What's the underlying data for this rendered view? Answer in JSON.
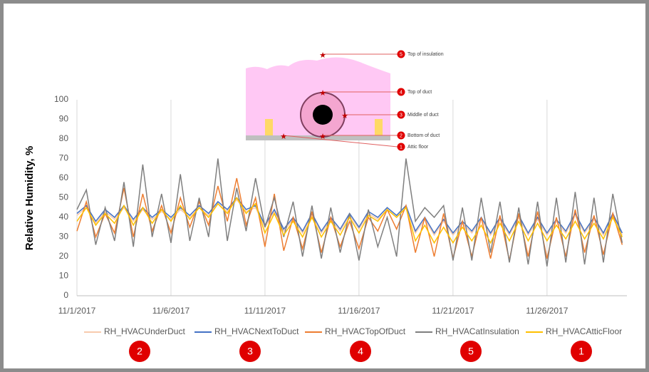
{
  "chart_data": {
    "type": "line",
    "y_label": "Relative Humidity, %",
    "x": [
      0,
      0.5,
      1,
      1.5,
      2,
      2.5,
      3,
      3.5,
      4,
      4.5,
      5,
      5.5,
      6,
      6.5,
      7,
      7.5,
      8,
      8.5,
      9,
      9.5,
      10,
      10.5,
      11,
      11.5,
      12,
      12.5,
      13,
      13.5,
      14,
      14.5,
      15,
      15.5,
      16,
      16.5,
      17,
      17.5,
      18,
      18.5,
      19,
      19.5,
      20,
      20.5,
      21,
      21.5,
      22,
      22.5,
      23,
      23.5,
      24,
      24.5,
      25,
      25.5,
      26,
      26.5,
      27,
      27.5,
      28,
      28.5,
      29
    ],
    "xlim": [
      0,
      29.25
    ],
    "xticks": [
      {
        "value": 0,
        "label": "11/1/2017"
      },
      {
        "value": 5,
        "label": "11/6/2017"
      },
      {
        "value": 10,
        "label": "11/11/2017"
      },
      {
        "value": 15,
        "label": "11/16/2017"
      },
      {
        "value": 20,
        "label": "11/21/2017"
      },
      {
        "value": 25,
        "label": "11/26/2017"
      }
    ],
    "ylim": [
      0,
      100
    ],
    "yticks": [
      0,
      10,
      20,
      30,
      40,
      50,
      60,
      70,
      80,
      90,
      100
    ],
    "grid": "x",
    "legend": "bottom",
    "series": [
      {
        "name": "RH_HVACUnderDuct",
        "color": "#f8cbad",
        "values": [
          41,
          45,
          37,
          43,
          39,
          45,
          38,
          44,
          39,
          43,
          39,
          44,
          40,
          45,
          41,
          47,
          43,
          49,
          43,
          45,
          35,
          43,
          33,
          39,
          32,
          41,
          32,
          39,
          33,
          41,
          34,
          42,
          39,
          44,
          40,
          45,
          32,
          39,
          31,
          38,
          31,
          37,
          32,
          39,
          31,
          39,
          31,
          40,
          31,
          39,
          31,
          38,
          32,
          41,
          32,
          39,
          31,
          41,
          31
        ]
      },
      {
        "name": "RH_HVACNextToDuct",
        "color": "#4472c4",
        "values": [
          42,
          46,
          38,
          44,
          40,
          46,
          39,
          45,
          40,
          44,
          40,
          45,
          41,
          46,
          42,
          48,
          44,
          50,
          44,
          46,
          36,
          44,
          34,
          40,
          33,
          42,
          33,
          40,
          34,
          42,
          35,
          43,
          40,
          45,
          41,
          46,
          33,
          40,
          32,
          39,
          32,
          38,
          33,
          40,
          32,
          40,
          32,
          41,
          32,
          40,
          32,
          39,
          33,
          42,
          33,
          40,
          32,
          42,
          32
        ]
      },
      {
        "name": "RH_HVACTopOfDuct",
        "color": "#ed7d31",
        "values": [
          33,
          48,
          30,
          42,
          32,
          55,
          30,
          52,
          33,
          46,
          32,
          50,
          35,
          48,
          36,
          56,
          38,
          60,
          36,
          50,
          25,
          52,
          23,
          40,
          24,
          43,
          22,
          40,
          25,
          38,
          24,
          40,
          33,
          44,
          34,
          46,
          22,
          40,
          20,
          42,
          19,
          38,
          20,
          40,
          19,
          41,
          18,
          42,
          20,
          43,
          19,
          40,
          20,
          44,
          22,
          41,
          21,
          42,
          26
        ]
      },
      {
        "name": "RH_HVACatInsulation",
        "color": "#7f7f7f",
        "values": [
          44,
          54,
          26,
          45,
          28,
          58,
          25,
          67,
          30,
          52,
          27,
          62,
          28,
          50,
          30,
          70,
          28,
          55,
          33,
          60,
          35,
          50,
          30,
          48,
          20,
          46,
          19,
          45,
          22,
          42,
          18,
          44,
          25,
          40,
          20,
          70,
          38,
          45,
          40,
          46,
          18,
          45,
          18,
          50,
          22,
          48,
          17,
          45,
          16,
          48,
          15,
          50,
          17,
          53,
          16,
          50,
          17,
          52,
          27
        ]
      },
      {
        "name": "RH_HVACAtticFloor",
        "color": "#ffc000",
        "values": [
          38,
          45,
          36,
          42,
          37,
          46,
          36,
          45,
          37,
          44,
          38,
          46,
          39,
          45,
          40,
          47,
          42,
          50,
          42,
          47,
          32,
          42,
          31,
          38,
          30,
          40,
          30,
          38,
          31,
          40,
          32,
          41,
          38,
          44,
          40,
          45,
          28,
          36,
          27,
          35,
          27,
          35,
          28,
          36,
          27,
          37,
          28,
          38,
          28,
          37,
          28,
          36,
          29,
          38,
          29,
          37,
          29,
          40,
          30
        ]
      }
    ],
    "legend_badges": [
      "2",
      "3",
      "4",
      "5",
      "1"
    ]
  },
  "diagram": {
    "callouts": [
      {
        "number": "5",
        "label": "Top of insulation"
      },
      {
        "number": "4",
        "label": "Top of duct"
      },
      {
        "number": "3",
        "label": "Middle of duct"
      },
      {
        "number": "2",
        "label": "Bottom of duct"
      },
      {
        "number": "1",
        "label": "Attic floor"
      }
    ]
  }
}
